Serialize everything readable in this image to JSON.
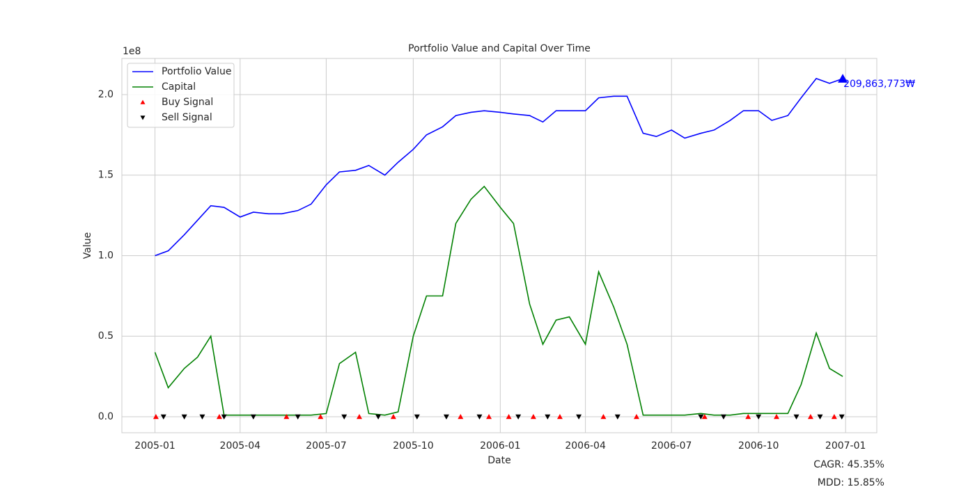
{
  "chart_data": {
    "type": "line",
    "title": "Portfolio Value and Capital Over Time",
    "xlabel": "Date",
    "ylabel": "Value",
    "y_offset_label": "1e8",
    "xlim": [
      "2004-11-27",
      "2007-02-03"
    ],
    "xticks": [
      "2005-01",
      "2005-04",
      "2005-07",
      "2005-10",
      "2006-01",
      "2006-04",
      "2006-07",
      "2006-10",
      "2007-01"
    ],
    "ylim": [
      -9940000,
      222460000
    ],
    "yticks": [
      {
        "value": 0,
        "label": "0.0"
      },
      {
        "value": 50000000,
        "label": "0.5"
      },
      {
        "value": 100000000,
        "label": "1.0"
      },
      {
        "value": 150000000,
        "label": "1.5"
      },
      {
        "value": 200000000,
        "label": "2.0"
      }
    ],
    "grid": true,
    "legend": "upper left",
    "x": [
      "2005-01-01",
      "2005-01-15",
      "2005-02-01",
      "2005-02-15",
      "2005-03-01",
      "2005-03-15",
      "2005-04-01",
      "2005-04-15",
      "2005-05-01",
      "2005-05-15",
      "2005-06-01",
      "2005-06-15",
      "2005-07-01",
      "2005-07-15",
      "2005-08-01",
      "2005-08-15",
      "2005-09-01",
      "2005-09-15",
      "2005-10-01",
      "2005-10-15",
      "2005-11-01",
      "2005-11-15",
      "2005-12-01",
      "2005-12-15",
      "2006-01-01",
      "2006-01-15",
      "2006-02-01",
      "2006-02-15",
      "2006-03-01",
      "2006-03-15",
      "2006-04-01",
      "2006-04-15",
      "2006-05-01",
      "2006-05-15",
      "2006-06-01",
      "2006-06-15",
      "2006-07-01",
      "2006-07-15",
      "2006-08-01",
      "2006-08-15",
      "2006-09-01",
      "2006-09-15",
      "2006-10-01",
      "2006-10-15",
      "2006-11-01",
      "2006-11-15",
      "2006-12-01",
      "2006-12-15",
      "2006-12-29"
    ],
    "series": [
      {
        "name": "Portfolio Value",
        "color": "#0000ff",
        "values": [
          100000000,
          103000000,
          113000000,
          122000000,
          131000000,
          130000000,
          124000000,
          127000000,
          126000000,
          126000000,
          128000000,
          132000000,
          144000000,
          152000000,
          153000000,
          156000000,
          150000000,
          158000000,
          166000000,
          175000000,
          180000000,
          187000000,
          189000000,
          190000000,
          189000000,
          188000000,
          187000000,
          183000000,
          190000000,
          190000000,
          190000000,
          198000000,
          199000000,
          199000000,
          176000000,
          174000000,
          178000000,
          173000000,
          176000000,
          178000000,
          184000000,
          190000000,
          190000000,
          184000000,
          187000000,
          198000000,
          210000000,
          207000000,
          209863773
        ]
      },
      {
        "name": "Capital",
        "color": "#008000",
        "values": [
          40000000,
          18000000,
          30000000,
          37000000,
          50000000,
          1000000,
          1000000,
          1000000,
          1000000,
          1000000,
          1000000,
          1000000,
          2000000,
          33000000,
          40000000,
          2000000,
          1000000,
          3000000,
          50000000,
          75000000,
          75000000,
          120000000,
          135000000,
          143000000,
          130000000,
          120000000,
          70000000,
          45000000,
          60000000,
          62000000,
          45000000,
          90000000,
          68000000,
          45000000,
          1000000,
          1000000,
          1000000,
          1000000,
          2000000,
          1000000,
          1000000,
          2000000,
          2000000,
          2000000,
          2000000,
          20000000,
          52000000,
          30000000,
          25000000
        ]
      }
    ],
    "signals": [
      {
        "name": "Buy Signal",
        "color": "#ff0000",
        "marker": "up",
        "x": [
          "2005-01-02",
          "2005-03-10",
          "2005-05-20",
          "2005-06-25",
          "2005-08-05",
          "2005-09-10",
          "2005-11-20",
          "2005-12-20",
          "2006-01-10",
          "2006-02-05",
          "2006-03-05",
          "2006-04-20",
          "2006-05-25",
          "2006-08-05",
          "2006-09-20",
          "2006-10-20",
          "2006-11-25",
          "2006-12-20"
        ],
        "values": [
          0,
          0,
          0,
          0,
          0,
          0,
          0,
          0,
          0,
          0,
          0,
          0,
          0,
          0,
          0,
          0,
          0,
          0
        ]
      },
      {
        "name": "Sell Signal",
        "color": "#000000",
        "marker": "down",
        "x": [
          "2005-01-10",
          "2005-02-01",
          "2005-02-20",
          "2005-03-15",
          "2005-04-15",
          "2005-06-01",
          "2005-07-20",
          "2005-08-25",
          "2005-10-05",
          "2005-11-05",
          "2005-12-10",
          "2006-01-20",
          "2006-02-20",
          "2006-03-25",
          "2006-05-05",
          "2006-08-01",
          "2006-08-25",
          "2006-10-01",
          "2006-11-10",
          "2006-12-05",
          "2006-12-28"
        ],
        "values": [
          0,
          0,
          0,
          0,
          0,
          0,
          0,
          0,
          0,
          0,
          0,
          0,
          0,
          0,
          0,
          0,
          0,
          0,
          0,
          0,
          0
        ]
      }
    ],
    "annotation": {
      "x": "2006-12-29",
      "value": 209863773,
      "label": "209,863,773₩",
      "color": "#0000ff"
    },
    "metrics": [
      "CAGR: 45.35%",
      "MDD: 15.85%"
    ]
  }
}
